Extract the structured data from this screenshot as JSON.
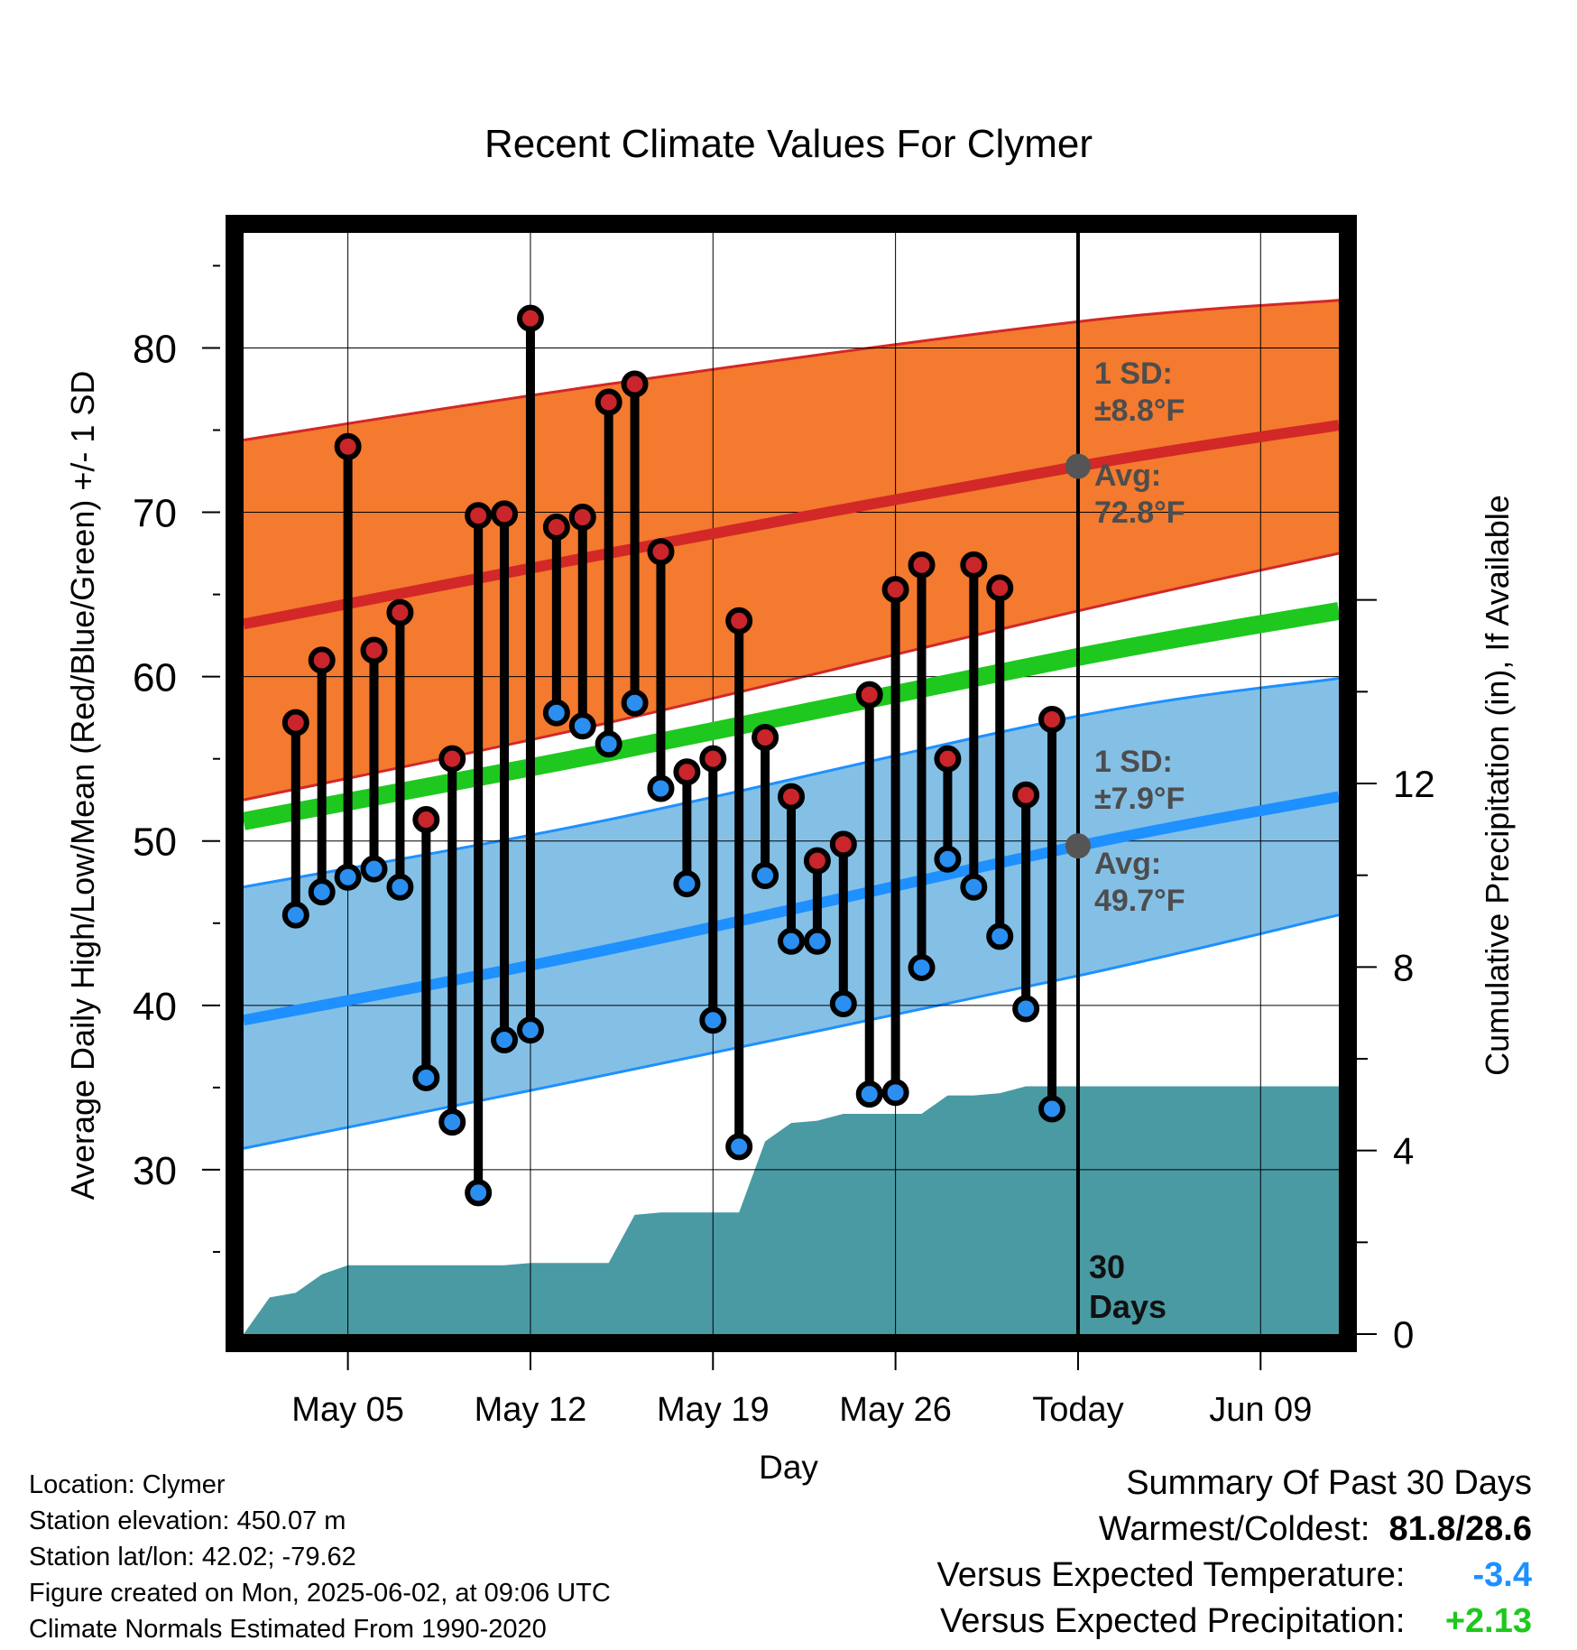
{
  "chart_data": {
    "type": "range",
    "title": "Recent Climate Values For Clymer",
    "xlabel": "Day",
    "ylabel": "Average Daily High/Low/Mean (Red/Blue/Green) +/- 1 SD",
    "y2label": "Cumulative Precipitation (in), If Available",
    "ylim": [
      20,
      87
    ],
    "y2lim": [
      0,
      24
    ],
    "y_ticks": [
      30,
      40,
      50,
      60,
      70,
      80
    ],
    "y2_ticks": [
      0,
      4,
      8,
      12
    ],
    "xlim": [
      "2025-05-01",
      "2025-06-12"
    ],
    "x_tick_labels": [
      {
        "date": "2025-05-05",
        "label": "May 05"
      },
      {
        "date": "2025-05-12",
        "label": "May 12"
      },
      {
        "date": "2025-05-19",
        "label": "May 19"
      },
      {
        "date": "2025-05-26",
        "label": "May 26"
      },
      {
        "date": "2025-06-02",
        "label": "Today"
      },
      {
        "date": "2025-06-09",
        "label": "Jun 09"
      }
    ],
    "grid": true,
    "daily": [
      {
        "date": "2025-05-03",
        "high": 57.2,
        "low": 45.5
      },
      {
        "date": "2025-05-04",
        "high": 61.0,
        "low": 46.9
      },
      {
        "date": "2025-05-05",
        "high": 74.0,
        "low": 47.8
      },
      {
        "date": "2025-05-06",
        "high": 61.6,
        "low": 48.3
      },
      {
        "date": "2025-05-07",
        "high": 63.9,
        "low": 47.2
      },
      {
        "date": "2025-05-08",
        "high": 51.3,
        "low": 35.6
      },
      {
        "date": "2025-05-09",
        "high": 55.0,
        "low": 32.9
      },
      {
        "date": "2025-05-10",
        "high": 69.8,
        "low": 28.6
      },
      {
        "date": "2025-05-11",
        "high": 69.9,
        "low": 37.9
      },
      {
        "date": "2025-05-12",
        "high": 81.8,
        "low": 38.5
      },
      {
        "date": "2025-05-13",
        "high": 69.1,
        "low": 57.8
      },
      {
        "date": "2025-05-14",
        "high": 69.7,
        "low": 57.0
      },
      {
        "date": "2025-05-15",
        "high": 76.7,
        "low": 55.9
      },
      {
        "date": "2025-05-16",
        "high": 77.8,
        "low": 58.4
      },
      {
        "date": "2025-05-17",
        "high": 67.6,
        "low": 53.2
      },
      {
        "date": "2025-05-18",
        "high": 54.2,
        "low": 47.4
      },
      {
        "date": "2025-05-19",
        "high": 55.0,
        "low": 39.1
      },
      {
        "date": "2025-05-20",
        "high": 63.4,
        "low": 31.4
      },
      {
        "date": "2025-05-21",
        "high": 56.3,
        "low": 47.9
      },
      {
        "date": "2025-05-22",
        "high": 52.7,
        "low": 43.9
      },
      {
        "date": "2025-05-23",
        "high": 48.8,
        "low": 43.9
      },
      {
        "date": "2025-05-24",
        "high": 49.8,
        "low": 40.1
      },
      {
        "date": "2025-05-25",
        "high": 58.9,
        "low": 34.6
      },
      {
        "date": "2025-05-26",
        "high": 65.3,
        "low": 34.7
      },
      {
        "date": "2025-05-27",
        "high": 66.8,
        "low": 42.3
      },
      {
        "date": "2025-05-28",
        "high": 55.0,
        "low": 48.9
      },
      {
        "date": "2025-05-29",
        "high": 66.8,
        "low": 47.2
      },
      {
        "date": "2025-05-30",
        "high": 65.4,
        "low": 44.2
      },
      {
        "date": "2025-05-31",
        "high": 52.8,
        "low": 39.8
      },
      {
        "date": "2025-06-01",
        "high": 57.4,
        "low": 33.7
      }
    ],
    "normals": {
      "dates": [
        "2025-05-01",
        "2025-05-15",
        "2025-06-02",
        "2025-06-12"
      ],
      "high_avg": [
        63.2,
        67.5,
        72.8,
        75.3
      ],
      "high_upper": [
        74.4,
        77.8,
        81.6,
        82.9
      ],
      "high_lower": [
        52.5,
        57.2,
        64.0,
        67.5
      ],
      "mean": [
        51.2,
        55.4,
        61.2,
        64.0
      ],
      "low_avg": [
        39.1,
        43.4,
        49.7,
        52.7
      ],
      "low_upper": [
        47.2,
        51.3,
        57.6,
        59.9
      ],
      "low_lower": [
        31.3,
        35.8,
        41.8,
        45.5
      ]
    },
    "precip_cumulative": {
      "dates": [
        "2025-05-01",
        "2025-05-02",
        "2025-05-03",
        "2025-05-04",
        "2025-05-05",
        "2025-05-06",
        "2025-05-07",
        "2025-05-08",
        "2025-05-09",
        "2025-05-10",
        "2025-05-11",
        "2025-05-12",
        "2025-05-13",
        "2025-05-14",
        "2025-05-15",
        "2025-05-16",
        "2025-05-17",
        "2025-05-18",
        "2025-05-19",
        "2025-05-20",
        "2025-05-21",
        "2025-05-22",
        "2025-05-23",
        "2025-05-24",
        "2025-05-25",
        "2025-05-26",
        "2025-05-27",
        "2025-05-28",
        "2025-05-29",
        "2025-05-30",
        "2025-05-31",
        "2025-06-01",
        "2025-06-02",
        "2025-06-12"
      ],
      "values": [
        0.0,
        0.8,
        0.9,
        1.3,
        1.5,
        1.5,
        1.5,
        1.5,
        1.5,
        1.5,
        1.5,
        1.55,
        1.55,
        1.55,
        1.55,
        2.6,
        2.65,
        2.65,
        2.65,
        2.65,
        4.2,
        4.6,
        4.65,
        4.8,
        4.8,
        4.8,
        4.8,
        5.2,
        5.2,
        5.25,
        5.4,
        5.4,
        5.4,
        5.4
      ]
    },
    "today": "2025-06-02",
    "annotations": {
      "high_sd": "1 SD:",
      "high_sd_value": "±8.8°F",
      "high_avg_label": "Avg:",
      "high_avg_value": "72.8°F",
      "low_sd": "1 SD:",
      "low_sd_value": "±7.9°F",
      "low_avg_label": "Avg:",
      "low_avg_value": "49.7°F",
      "days_count": "30",
      "days_word": "Days"
    },
    "colors": {
      "high_band": "#f37a2e",
      "high_line": "#d22828",
      "mean_line": "#1ec81e",
      "low_band": "#84c0e6",
      "low_line": "#1e90ff",
      "precip": "#4a9aa4",
      "high_marker": "#c9252b",
      "low_marker": "#2a8ff0",
      "today_marker": "#555555"
    }
  },
  "info": {
    "location": "Location: Clymer",
    "elevation": "Station elevation: 450.07 m",
    "latlon": "Station lat/lon: 42.02; -79.62",
    "created": "Figure created on Mon, 2025-06-02, at 09:06 UTC",
    "normals": "Climate Normals Estimated From 1990-2020"
  },
  "summary": {
    "heading": "Summary Of Past 30 Days",
    "warm_cold_label": "Warmest/Coldest:",
    "warm_cold_value": "81.8/28.6",
    "temp_label": "Versus Expected Temperature:",
    "temp_value": "-3.4",
    "temp_color": "#1e90ff",
    "precip_label": "Versus Expected Precipitation:",
    "precip_value": "+2.13",
    "precip_color": "#1ec81e"
  }
}
